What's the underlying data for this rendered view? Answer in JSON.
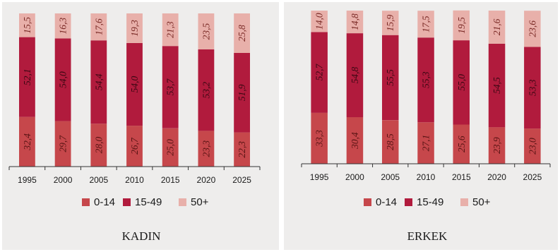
{
  "colors": {
    "0-14": "#c6474b",
    "15-49": "#b11b3d",
    "50+": "#e8b0aa",
    "panel_bg": "#eeedec"
  },
  "chart_data": [
    {
      "type": "bar",
      "stacked": true,
      "title": "KADIN",
      "categories": [
        "1995",
        "2000",
        "2005",
        "2010",
        "2015",
        "2020",
        "2025"
      ],
      "series": [
        {
          "name": "0-14",
          "values": [
            32.4,
            29.7,
            28.0,
            26.7,
            25.0,
            23.3,
            22.3
          ],
          "labels": [
            "32,4",
            "29,7",
            "28,0",
            "26,7",
            "25,0",
            "23,3",
            "22,3"
          ]
        },
        {
          "name": "15-49",
          "values": [
            52.1,
            54.0,
            54.4,
            54.0,
            53.7,
            53.2,
            51.9
          ],
          "labels": [
            "52,1",
            "54,0",
            "54,4",
            "54,0",
            "53,7",
            "53,2",
            "51,9"
          ]
        },
        {
          "name": "50+",
          "values": [
            15.5,
            16.3,
            17.6,
            19.3,
            21.3,
            23.5,
            25.8
          ],
          "labels": [
            "15,5",
            "16,3",
            "17,6",
            "19,3",
            "21,3",
            "23,5",
            "25,8"
          ]
        }
      ],
      "ylim": [
        0,
        100
      ],
      "grid": false,
      "legend": "bottom"
    },
    {
      "type": "bar",
      "stacked": true,
      "title": "ERKEK",
      "categories": [
        "1995",
        "2000",
        "2005",
        "2010",
        "2015",
        "2020",
        "2025"
      ],
      "series": [
        {
          "name": "0-14",
          "values": [
            33.3,
            30.4,
            28.5,
            27.1,
            25.6,
            23.9,
            23.0
          ],
          "labels": [
            "33,3",
            "30,4",
            "28,5",
            "27,1",
            "25,6",
            "23,9",
            "23,0"
          ]
        },
        {
          "name": "15-49",
          "values": [
            52.7,
            54.8,
            55.5,
            55.3,
            55.0,
            54.5,
            53.3
          ],
          "labels": [
            "52,7",
            "54,8",
            "55,5",
            "55,3",
            "55,0",
            "54,5",
            "53,3"
          ]
        },
        {
          "name": "50+",
          "values": [
            14.0,
            14.8,
            15.9,
            17.5,
            19.5,
            21.6,
            23.6
          ],
          "labels": [
            "14,0",
            "14,8",
            "15,9",
            "17,5",
            "19,5",
            "21,6",
            "23,6"
          ]
        }
      ],
      "ylim": [
        0,
        100
      ],
      "grid": false,
      "legend": "bottom"
    }
  ]
}
